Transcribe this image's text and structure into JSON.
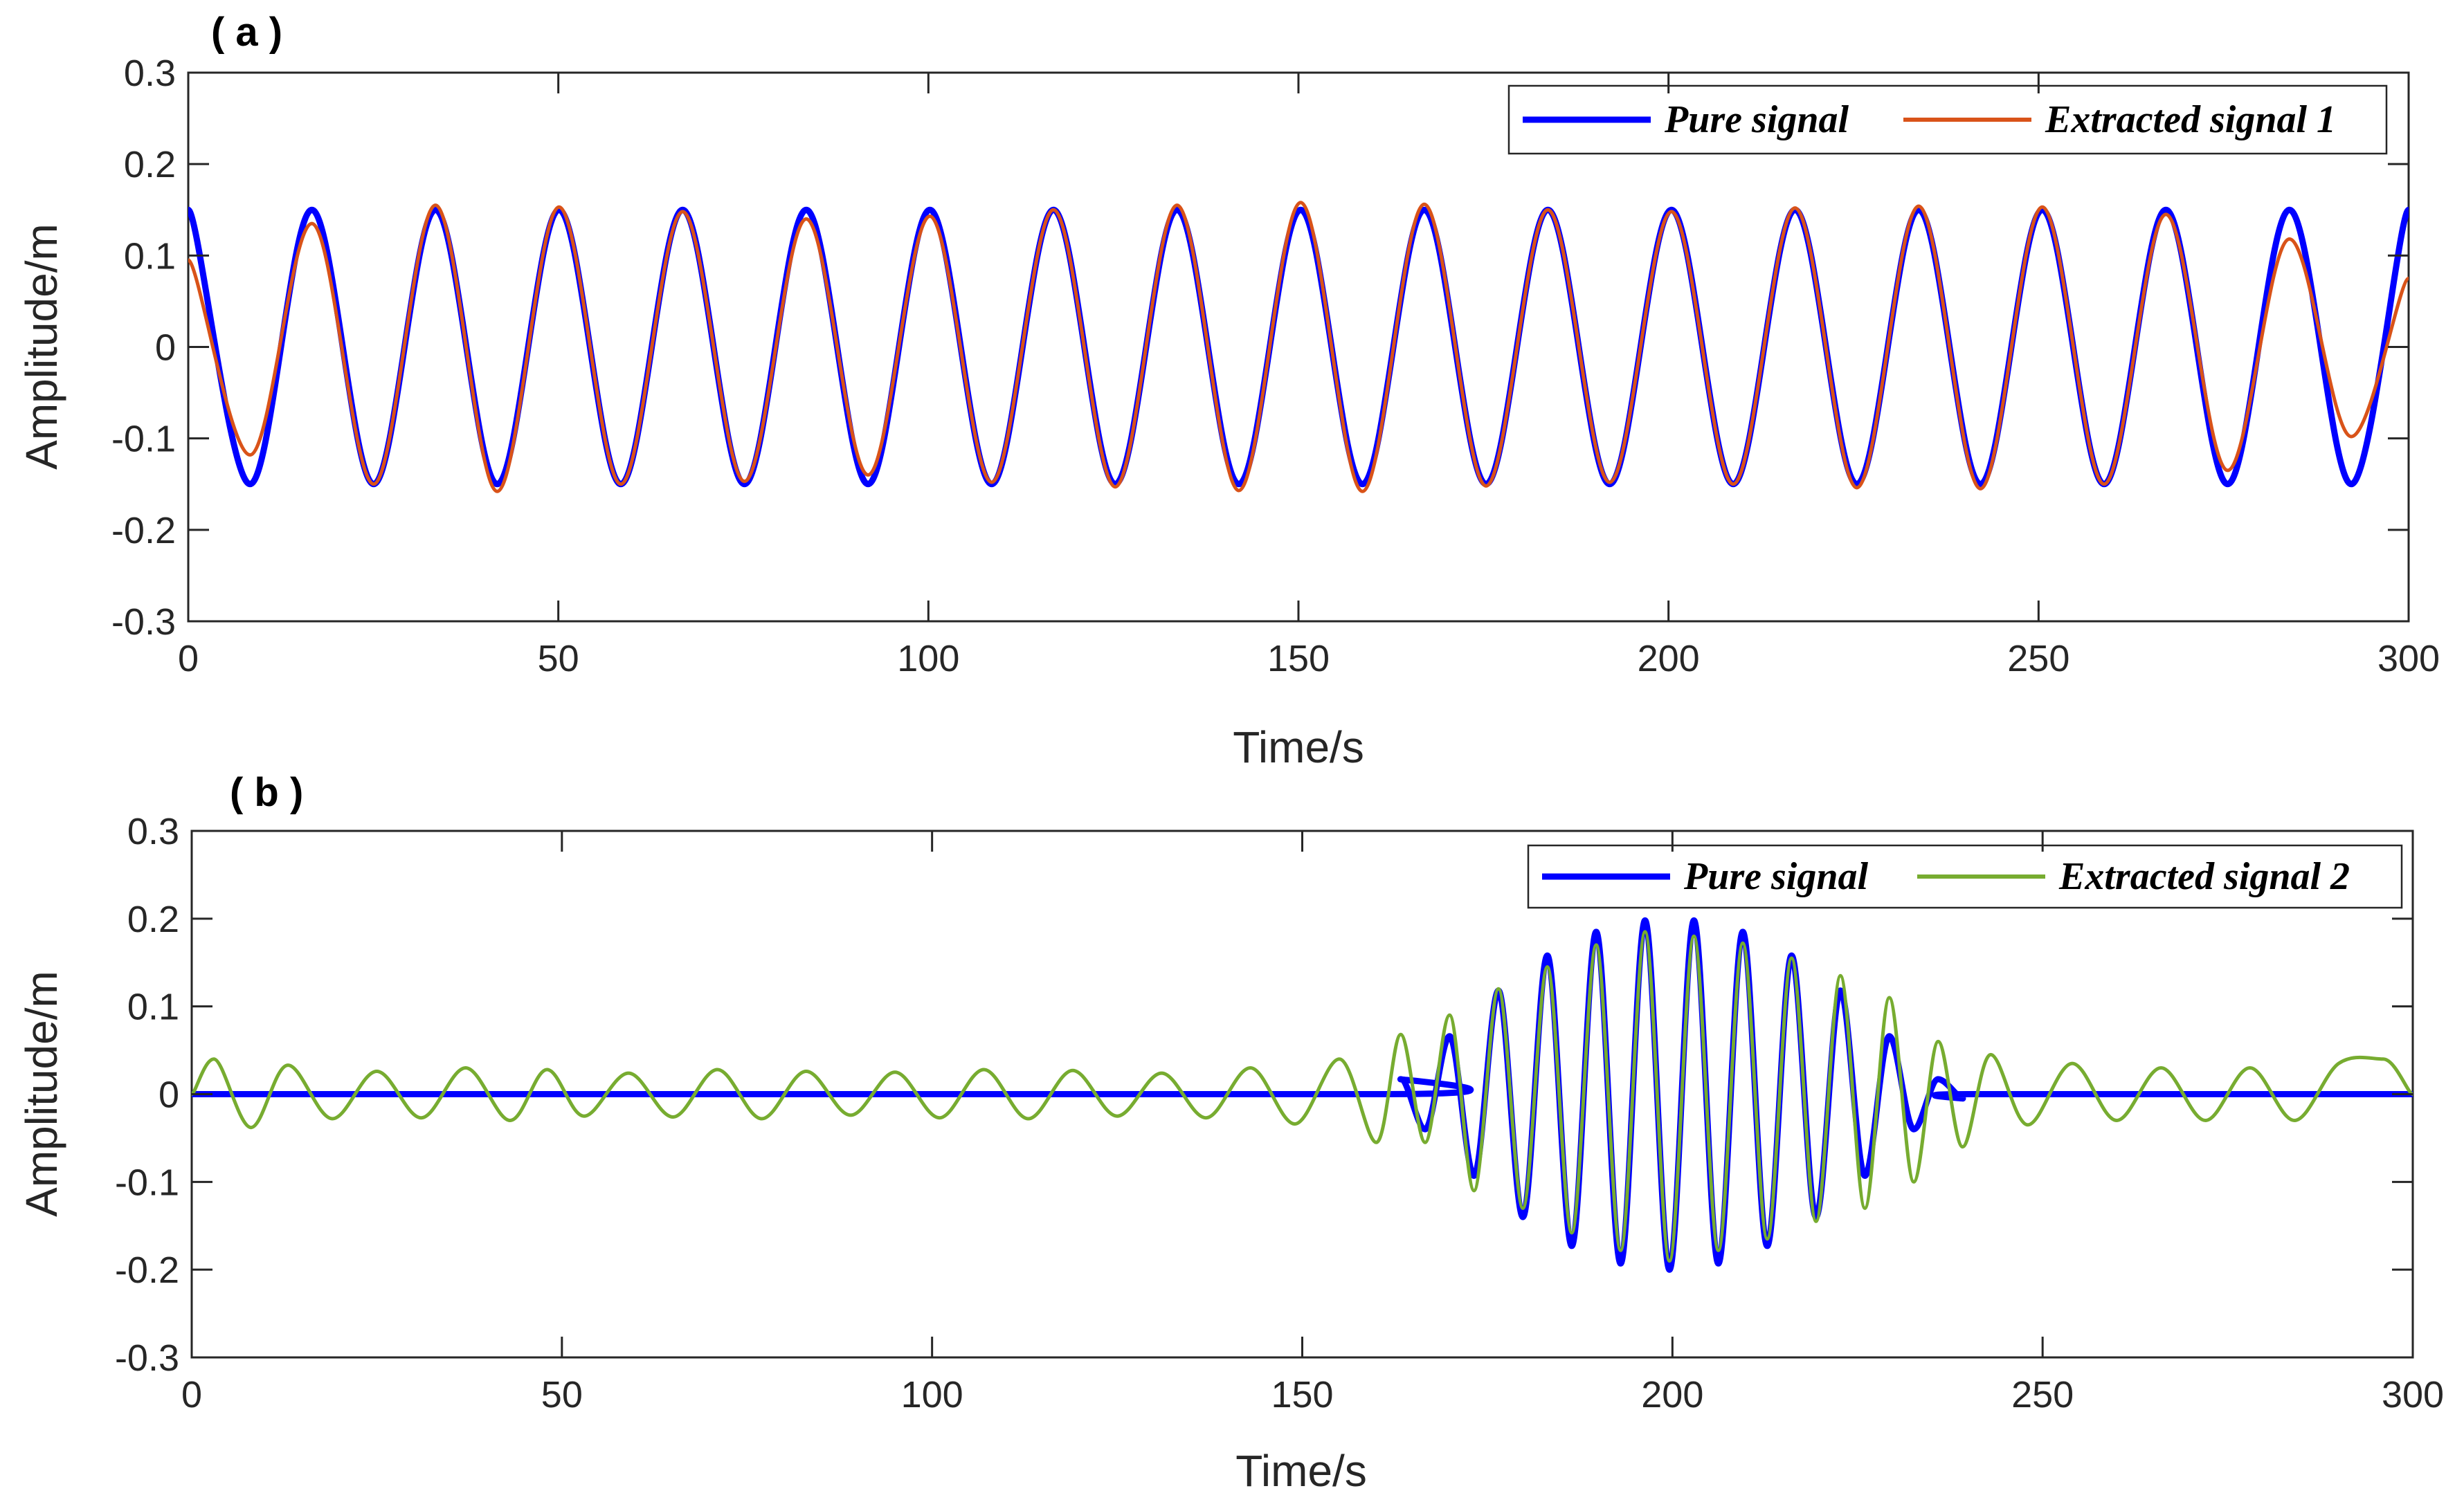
{
  "chart_data": [
    {
      "panel_label": "( a )",
      "type": "line",
      "xlabel": "Time/s",
      "ylabel": "Amplitude/m",
      "xlim": [
        0,
        300
      ],
      "ylim": [
        -0.3,
        0.3
      ],
      "x_ticks": [
        "0",
        "50",
        "100",
        "150",
        "200",
        "250",
        "300"
      ],
      "y_ticks": [
        "-0.3",
        "-0.2",
        "-0.1",
        "0",
        "0.1",
        "0.2",
        "0.3"
      ],
      "grid": false,
      "legend_position": "top-right",
      "series": [
        {
          "name": "Pure signal",
          "color": "#0000ff",
          "description": "sinusoid, amplitude 0.15 m, period about 16.7 s",
          "x": [
            0,
            8.35,
            16.7,
            25.05,
            33.4,
            41.75,
            50.1,
            58.45,
            66.8,
            75.15,
            83.5,
            91.85,
            100.2,
            108.55,
            116.9,
            125.25,
            133.6,
            141.95,
            150.3,
            158.65,
            167,
            175.35,
            183.7,
            192.05,
            200.4,
            208.75,
            217.1,
            225.45,
            233.8,
            242.15,
            250.5,
            258.85,
            267.2,
            275.55,
            283.9,
            292.25,
            300
          ],
          "y": [
            0.15,
            -0.15,
            0.15,
            -0.15,
            0.15,
            -0.15,
            0.15,
            -0.15,
            0.15,
            -0.15,
            0.15,
            -0.15,
            0.15,
            -0.15,
            0.15,
            -0.15,
            0.15,
            -0.15,
            0.15,
            -0.15,
            0.15,
            -0.15,
            0.15,
            -0.15,
            0.15,
            -0.15,
            0.15,
            -0.15,
            0.15,
            -0.15,
            0.15,
            -0.15,
            0.15,
            -0.15,
            0.15,
            -0.15,
            0.15
          ]
        },
        {
          "name": "Extracted signal 1",
          "color": "#d95319",
          "description": "follows pure signal with end-effect distortion near 0 s and 300 s",
          "x": [
            0,
            8.35,
            16.7,
            25.05,
            33.4,
            41.75,
            50.1,
            58.45,
            66.8,
            75.15,
            83.5,
            91.85,
            100.2,
            108.55,
            116.9,
            125.25,
            133.6,
            141.95,
            150.3,
            158.65,
            167,
            175.35,
            183.7,
            192.05,
            200.4,
            208.75,
            217.1,
            225.45,
            233.8,
            242.15,
            250.5,
            258.85,
            267.2,
            275.55,
            283.9,
            292.25,
            300
          ],
          "y": [
            0.095,
            -0.118,
            0.135,
            -0.15,
            0.155,
            -0.158,
            0.153,
            -0.15,
            0.148,
            -0.147,
            0.14,
            -0.14,
            0.143,
            -0.148,
            0.15,
            -0.153,
            0.155,
            -0.157,
            0.158,
            -0.158,
            0.156,
            -0.152,
            0.15,
            -0.148,
            0.148,
            -0.15,
            0.152,
            -0.154,
            0.154,
            -0.155,
            0.153,
            -0.15,
            0.145,
            -0.135,
            0.118,
            -0.098,
            0.075
          ]
        }
      ]
    },
    {
      "panel_label": "( b )",
      "type": "line",
      "xlabel": "Time/s",
      "ylabel": "Amplitude/m",
      "xlim": [
        0,
        300
      ],
      "ylim": [
        -0.3,
        0.3
      ],
      "x_ticks": [
        "0",
        "50",
        "100",
        "150",
        "200",
        "250",
        "300"
      ],
      "y_ticks": [
        "-0.3",
        "-0.2",
        "-0.1",
        "0",
        "0.1",
        "0.2",
        "0.3"
      ],
      "grid": false,
      "legend_position": "top-right",
      "series": [
        {
          "name": "Pure signal",
          "color": "#0000ff",
          "description": "zero outside 160-240 s; Gaussian-enveloped wave packet, peak amplitude 0.2 m near 200 s, period about 6.6 s",
          "x": [
            0,
            160,
            163.3,
            166.6,
            169.9,
            173.2,
            176.5,
            179.8,
            183.1,
            186.4,
            189.7,
            193,
            196.3,
            199.6,
            202.9,
            206.2,
            209.5,
            212.8,
            216.1,
            219.4,
            222.7,
            226,
            229.3,
            232.6,
            235.9,
            239.2,
            240,
            300
          ],
          "y": [
            0,
            0,
            0.017,
            -0.04,
            0.066,
            -0.093,
            0.118,
            -0.14,
            0.158,
            -0.173,
            0.185,
            -0.193,
            0.198,
            -0.2,
            0.198,
            -0.193,
            0.185,
            -0.173,
            0.158,
            -0.14,
            0.118,
            -0.093,
            0.066,
            -0.04,
            0.017,
            -0.005,
            0,
            0
          ]
        },
        {
          "name": "Extracted signal 2",
          "color": "#77ac30",
          "description": "low-level residual oscillation (about ±0.04 m) outside the packet, tracks the packet between 160 s and 240 s",
          "x": [
            0,
            3,
            8,
            13,
            19,
            25,
            31,
            37,
            43,
            48,
            53,
            59,
            65,
            71,
            77,
            83,
            89,
            95,
            101,
            107,
            113,
            119,
            125,
            131,
            137,
            143,
            149,
            155,
            160,
            163.3,
            166.6,
            169.9,
            173.2,
            176.5,
            179.8,
            183.1,
            186.4,
            189.7,
            193,
            196.3,
            199.6,
            202.9,
            206.2,
            209.5,
            212.8,
            216.1,
            219.4,
            222.7,
            226,
            229.3,
            232.6,
            235.9,
            239.2,
            243,
            248,
            254,
            260,
            266,
            272,
            278,
            284,
            290,
            296,
            300
          ],
          "y": [
            0,
            0.04,
            -0.038,
            0.033,
            -0.028,
            0.026,
            -0.027,
            0.03,
            -0.03,
            0.028,
            -0.025,
            0.024,
            -0.026,
            0.028,
            -0.028,
            0.026,
            -0.024,
            0.025,
            -0.027,
            0.028,
            -0.028,
            0.027,
            -0.025,
            0.024,
            -0.027,
            0.03,
            -0.034,
            0.04,
            -0.055,
            0.068,
            -0.055,
            0.09,
            -0.11,
            0.12,
            -0.13,
            0.145,
            -0.158,
            0.17,
            -0.178,
            0.185,
            -0.19,
            0.18,
            -0.178,
            0.172,
            -0.165,
            0.155,
            -0.145,
            0.135,
            -0.13,
            0.11,
            -0.1,
            0.06,
            -0.06,
            0.045,
            -0.035,
            0.035,
            -0.03,
            0.03,
            -0.03,
            0.03,
            -0.03,
            0.035,
            0.04,
            0
          ]
        }
      ]
    }
  ]
}
